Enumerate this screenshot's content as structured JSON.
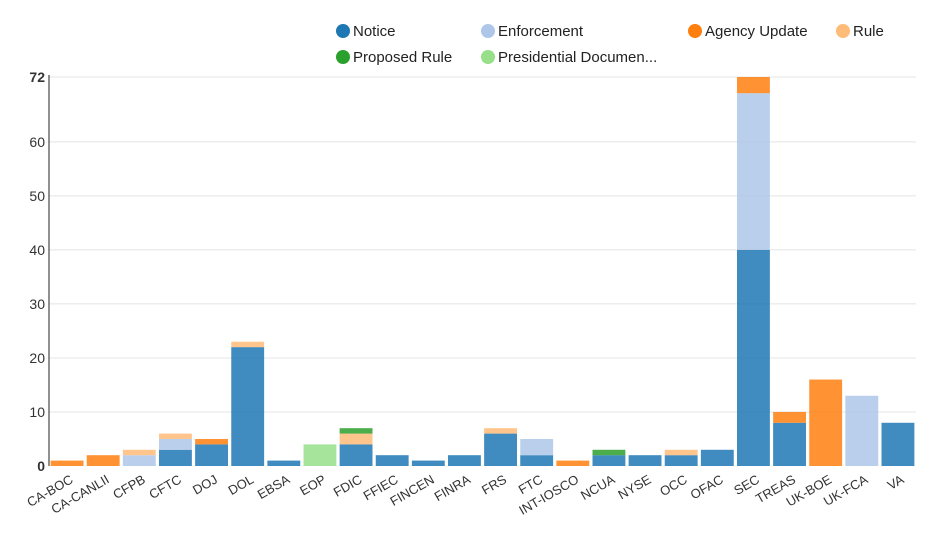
{
  "chart_data": {
    "type": "bar",
    "stacked": true,
    "title": "",
    "xlabel": "",
    "ylabel": "",
    "ylim": [
      0,
      72
    ],
    "yticks": [
      0,
      10,
      20,
      30,
      40,
      50,
      60,
      72
    ],
    "grid": true,
    "legend_position": "top",
    "categories": [
      "CA-BOC",
      "CA-CANLII",
      "CFPB",
      "CFTC",
      "DOJ",
      "DOL",
      "EBSA",
      "EOP",
      "FDIC",
      "FFIEC",
      "FINCEN",
      "FINRA",
      "FRS",
      "FTC",
      "INT-IOSCO",
      "NCUA",
      "NYSE",
      "OCC",
      "OFAC",
      "SEC",
      "TREAS",
      "UK-BOE",
      "UK-FCA",
      "VA"
    ],
    "series": [
      {
        "name": "Notice",
        "color": "#1f77b4",
        "values": [
          0,
          0,
          0,
          3,
          4,
          22,
          1,
          0,
          4,
          2,
          1,
          2,
          6,
          2,
          0,
          2,
          2,
          2,
          3,
          40,
          8,
          0,
          0,
          8
        ]
      },
      {
        "name": "Enforcement",
        "color": "#aec7e8",
        "values": [
          0,
          0,
          2,
          2,
          0,
          0,
          0,
          0,
          0,
          0,
          0,
          0,
          0,
          3,
          0,
          0,
          0,
          0,
          0,
          29,
          0,
          0,
          13,
          0
        ]
      },
      {
        "name": "Agency Update",
        "color": "#ff7f0e",
        "values": [
          1,
          2,
          0,
          0,
          1,
          0,
          0,
          0,
          0,
          0,
          0,
          0,
          0,
          0,
          1,
          0,
          0,
          0,
          0,
          3,
          2,
          16,
          0,
          0
        ]
      },
      {
        "name": "Rule",
        "color": "#ffbb78",
        "values": [
          0,
          0,
          1,
          1,
          0,
          1,
          0,
          0,
          2,
          0,
          0,
          0,
          1,
          0,
          0,
          0,
          0,
          1,
          0,
          0,
          0,
          0,
          0,
          0
        ]
      },
      {
        "name": "Proposed Rule",
        "color": "#2ca02c",
        "values": [
          0,
          0,
          0,
          0,
          0,
          0,
          0,
          0,
          1,
          0,
          0,
          0,
          0,
          0,
          0,
          1,
          0,
          0,
          0,
          0,
          0,
          0,
          0,
          0
        ]
      },
      {
        "name": "Presidential Documen...",
        "color": "#98df8a",
        "values": [
          0,
          0,
          0,
          0,
          0,
          0,
          0,
          4,
          0,
          0,
          0,
          0,
          0,
          0,
          0,
          0,
          0,
          0,
          0,
          0,
          0,
          0,
          0,
          0
        ]
      }
    ]
  }
}
